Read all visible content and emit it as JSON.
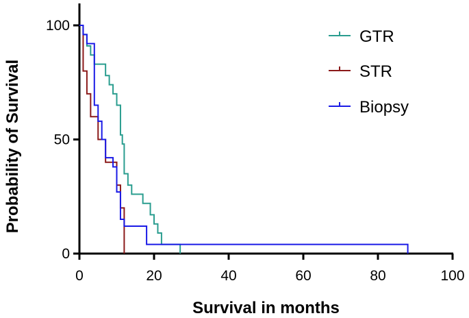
{
  "chart_data": {
    "type": "line",
    "subtype": "kaplan-meier-step",
    "title": "",
    "xlabel": "Survival in months",
    "ylabel": "Probability of Survival",
    "xlim": [
      0,
      100
    ],
    "ylim": [
      0,
      100
    ],
    "x_ticks": [
      0,
      20,
      40,
      60,
      80,
      100
    ],
    "y_ticks": [
      0,
      50,
      100
    ],
    "x_tick_labels": [
      "0",
      "20",
      "40",
      "60",
      "80",
      "100"
    ],
    "y_tick_labels": [
      "0",
      "50",
      "100"
    ],
    "legend_position": "top-right",
    "series": [
      {
        "name": "GTR",
        "color": "#2a9d8f",
        "points": [
          [
            0,
            100
          ],
          [
            1,
            96
          ],
          [
            2,
            91
          ],
          [
            3,
            87
          ],
          [
            4,
            83
          ],
          [
            7,
            78
          ],
          [
            8,
            74
          ],
          [
            9,
            70
          ],
          [
            10,
            65
          ],
          [
            11,
            52
          ],
          [
            11.5,
            48
          ],
          [
            12,
            35
          ],
          [
            13,
            30
          ],
          [
            14,
            26
          ],
          [
            17,
            22
          ],
          [
            19,
            17
          ],
          [
            20,
            13
          ],
          [
            21,
            9
          ],
          [
            22,
            4
          ],
          [
            27,
            0
          ]
        ]
      },
      {
        "name": "STR",
        "color": "#8b1a1a",
        "points": [
          [
            0,
            100
          ],
          [
            1,
            80
          ],
          [
            2,
            70
          ],
          [
            3,
            60
          ],
          [
            5,
            50
          ],
          [
            7,
            40
          ],
          [
            9,
            40
          ],
          [
            10,
            30
          ],
          [
            11,
            20
          ],
          [
            12,
            0
          ]
        ]
      },
      {
        "name": "Biopsy",
        "color": "#1a1ae6",
        "points": [
          [
            0,
            100
          ],
          [
            1,
            96
          ],
          [
            2,
            92
          ],
          [
            4,
            65
          ],
          [
            5,
            58
          ],
          [
            6,
            50
          ],
          [
            7,
            42
          ],
          [
            9,
            38
          ],
          [
            10,
            27
          ],
          [
            11,
            15
          ],
          [
            12,
            12
          ],
          [
            17,
            12
          ],
          [
            18,
            4
          ],
          [
            88,
            4
          ],
          [
            88,
            0
          ]
        ]
      }
    ]
  }
}
